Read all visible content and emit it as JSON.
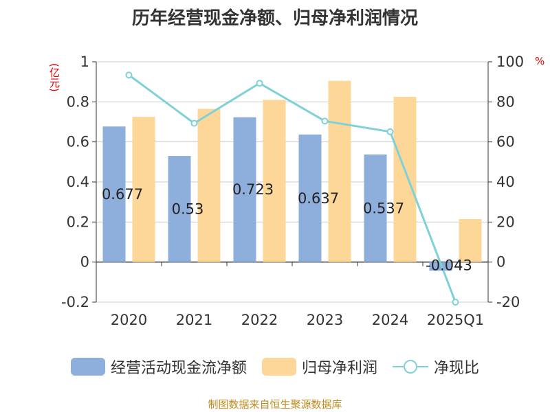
{
  "colors": {
    "bar1": "#8eaedb",
    "bar2": "#fdd797",
    "line": "#7fd1d8",
    "unit": "#e00000",
    "footer": "#c08a1e"
  },
  "footer": "制图数据来自恒生聚源数据库",
  "chart_data": {
    "type": "bar",
    "title": "历年经营现金净额、归母净利润情况",
    "categories": [
      "2020",
      "2021",
      "2022",
      "2023",
      "2024",
      "2025Q1"
    ],
    "ylabel_left": "(亿元)",
    "ylabel_right": "%",
    "ylim_left": [
      -0.2,
      1
    ],
    "ylim_right": [
      -20,
      100
    ],
    "yticks_left": [
      "1",
      "0.8",
      "0.6",
      "0.4",
      "0.2",
      "0",
      "-0.2"
    ],
    "yticks_right": [
      "100",
      "80",
      "60",
      "40",
      "20",
      "0",
      "-20"
    ],
    "series": [
      {
        "name": "经营活动现金流净额",
        "type": "bar",
        "axis": "left",
        "values": [
          0.677,
          0.53,
          0.723,
          0.637,
          0.537,
          -0.043
        ],
        "labels": [
          "0.677",
          "0.53",
          "0.723",
          "0.637",
          "0.537",
          "-0.043"
        ]
      },
      {
        "name": "归母净利润",
        "type": "bar",
        "axis": "left",
        "values": [
          0.725,
          0.765,
          0.81,
          0.905,
          0.825,
          0.215
        ]
      },
      {
        "name": "净现比",
        "type": "line",
        "axis": "right",
        "values": [
          93.4,
          69.3,
          89.3,
          70.4,
          65.1,
          -20
        ]
      }
    ]
  }
}
